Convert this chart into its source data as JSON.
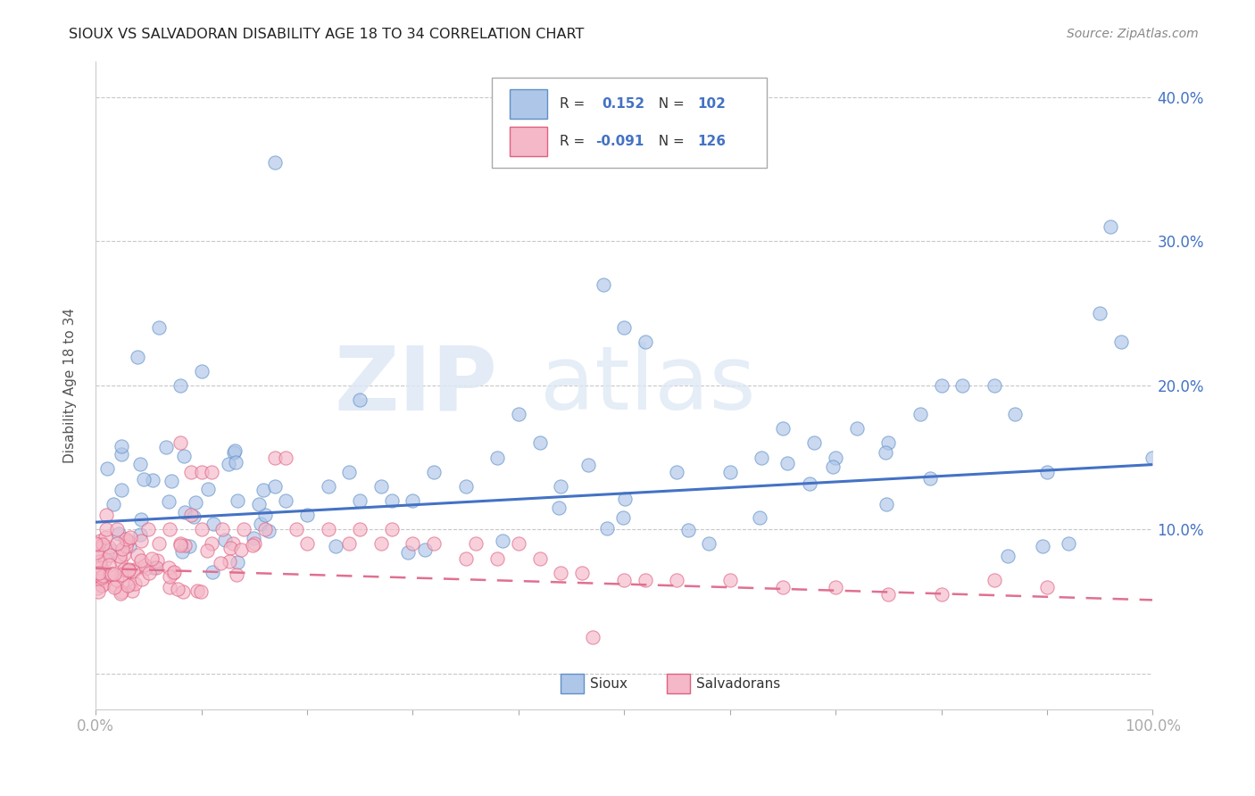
{
  "title": "SIOUX VS SALVADORAN DISABILITY AGE 18 TO 34 CORRELATION CHART",
  "source_text": "Source: ZipAtlas.com",
  "ylabel": "Disability Age 18 to 34",
  "xlim": [
    0.0,
    1.0
  ],
  "ylim": [
    -0.025,
    0.425
  ],
  "sioux_R": 0.152,
  "sioux_N": 102,
  "salv_R": -0.091,
  "salv_N": 126,
  "sioux_color": "#aec6e8",
  "salv_color": "#f4b8c8",
  "sioux_edge_color": "#6090c8",
  "salv_edge_color": "#e06080",
  "sioux_line_color": "#4472c4",
  "salv_line_color": "#e07090",
  "watermark_zip_color": "#dce8f4",
  "watermark_atlas_color": "#dce8f4",
  "legend_sioux": "Sioux",
  "legend_salv": "Salvadorans",
  "background_color": "#ffffff",
  "grid_color": "#c8c8c8",
  "title_color": "#222222",
  "axis_label_color": "#4472c4",
  "source_color": "#888888",
  "sioux_line_intercept": 0.105,
  "sioux_line_slope": 0.04,
  "salv_line_intercept": 0.073,
  "salv_line_slope": -0.022
}
